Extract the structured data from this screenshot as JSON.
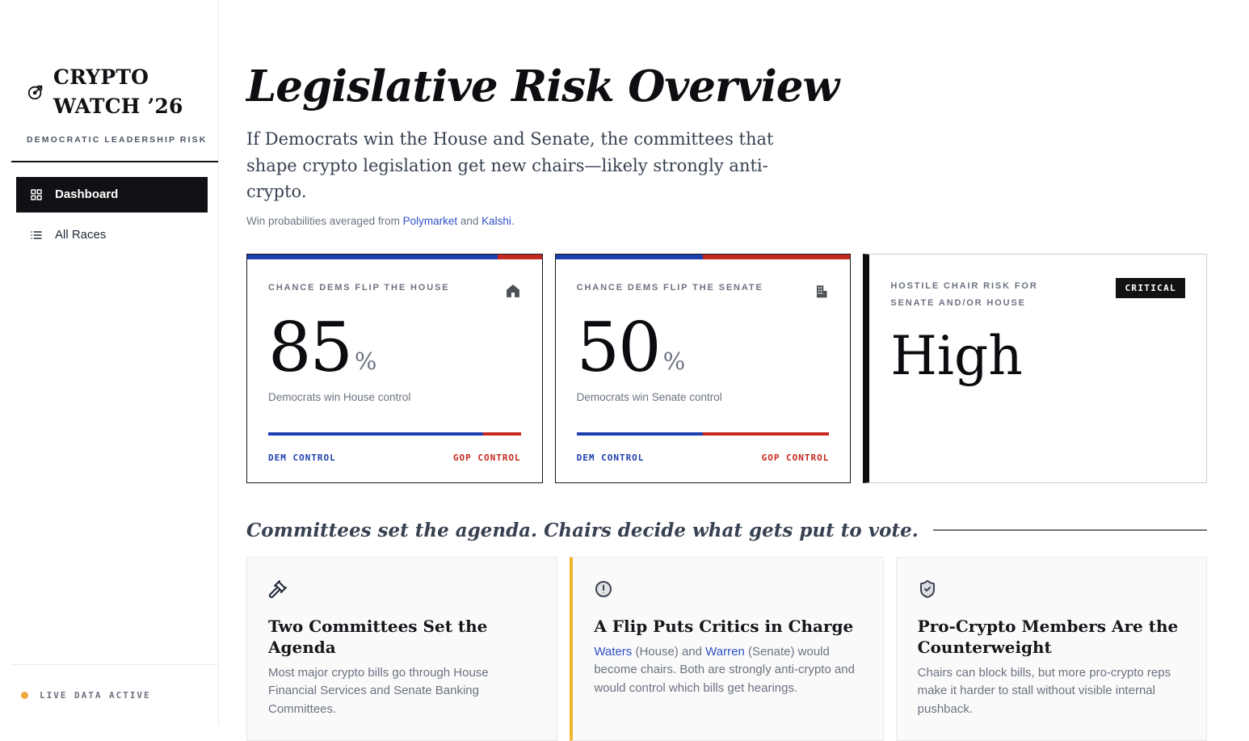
{
  "colors": {
    "dem": "#1e3fae",
    "gop": "#c5281f",
    "link": "#2d50c5",
    "amber": "#f0b42d",
    "ink": "#101114",
    "muted": "#6b7280",
    "border_dark": "#17171c",
    "border_light": "#e7e8ea",
    "card_bg": "#fafafa",
    "badge_bg": "#121214",
    "dot": "#f0a93c"
  },
  "sidebar": {
    "logo": {
      "line1": "CRYPTO",
      "line2": "WATCH ’26",
      "subtitle": "DEMOCRATIC LEADERSHIP RISK",
      "icon": "target-icon"
    },
    "nav": [
      {
        "label": "Dashboard",
        "icon": "grid-icon",
        "active": true
      },
      {
        "label": "All Races",
        "icon": "list-icon",
        "active": false
      }
    ],
    "footer": {
      "status": "LIVE DATA ACTIVE"
    }
  },
  "header": {
    "title": "Legislative Risk Overview",
    "subtitle": "If Democrats win the House and Senate, the committees that shape crypto legislation get new chairs—likely strongly anti-crypto.",
    "attribution": {
      "prefix": "Win probabilities averaged from ",
      "link1": "Polymarket",
      "middle": " and ",
      "link2": "Kalshi",
      "suffix": "."
    }
  },
  "stat_cards": [
    {
      "label": "CHANCE DEMS FLIP THE HOUSE",
      "icon": "home-icon",
      "value": "85",
      "unit": "%",
      "caption": "Democrats win House control",
      "dem_pct": 85,
      "bar_left_label": "DEM CONTROL",
      "bar_right_label": "GOP CONTROL"
    },
    {
      "label": "CHANCE DEMS FLIP THE SENATE",
      "icon": "building-icon",
      "value": "50",
      "unit": "%",
      "caption": "Democrats win Senate control",
      "dem_pct": 50,
      "bar_left_label": "DEM CONTROL",
      "bar_right_label": "GOP CONTROL"
    }
  ],
  "risk_card": {
    "label": "HOSTILE CHAIR RISK FOR SENATE AND/OR HOUSE",
    "badge": "CRITICAL",
    "value": "High"
  },
  "section": {
    "heading": "Committees set the agenda. Chairs decide what gets put to vote."
  },
  "info_cards": [
    {
      "icon": "gavel-icon",
      "title": "Two Committees Set the Agenda",
      "body": "Most major crypto bills go through House Financial Services and Senate Banking Committees."
    },
    {
      "icon": "alert-circle-icon",
      "title": "A Flip Puts Critics in Charge",
      "body_link1": "Waters",
      "body_mid1": " (House) and ",
      "body_link2": "Warren",
      "body_rest": " (Senate) would become chairs. Both are strongly anti-crypto and would control which bills get hearings."
    },
    {
      "icon": "shield-check-icon",
      "title": "Pro-Crypto Members Are the Counterweight",
      "body": "Chairs can block bills, but more pro-crypto reps make it harder to stall without visible internal pushback."
    }
  ]
}
